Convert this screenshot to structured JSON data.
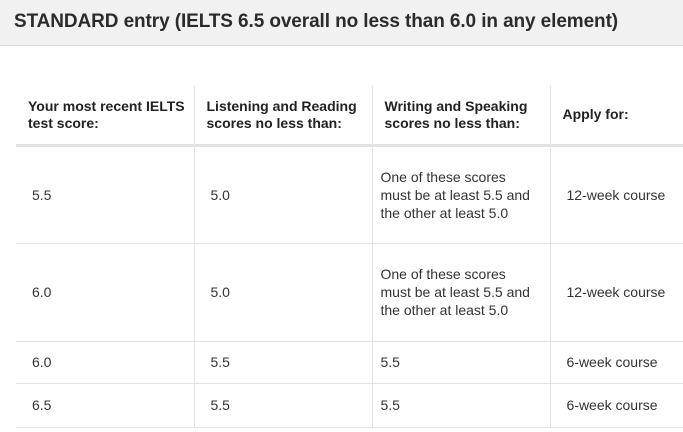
{
  "header": {
    "title": "STANDARD entry (IELTS 6.5 overall no less than 6.0 in any element)"
  },
  "table": {
    "columns": [
      "Your most recent IELTS test score:",
      "Listening and Reading scores no less than:",
      "Writing and Speaking scores no less than:",
      "Apply for:"
    ],
    "rows": [
      {
        "recent_score": "5.5",
        "listening_reading": "5.0",
        "writing_speaking": " One of these scores must be at least 5.5 and the other at least 5.0",
        "apply_for": "12-week course"
      },
      {
        "recent_score": "6.0",
        "listening_reading": "5.0",
        "writing_speaking": " One of these scores must be at least 5.5 and the other at least 5.0",
        "apply_for": "12-week course"
      },
      {
        "recent_score": "6.0",
        "listening_reading": "5.5",
        "writing_speaking": "5.5",
        "apply_for": "6-week course"
      },
      {
        "recent_score": "6.5",
        "listening_reading": "5.5",
        "writing_speaking": "5.5",
        "apply_for": "6-week course"
      }
    ]
  }
}
